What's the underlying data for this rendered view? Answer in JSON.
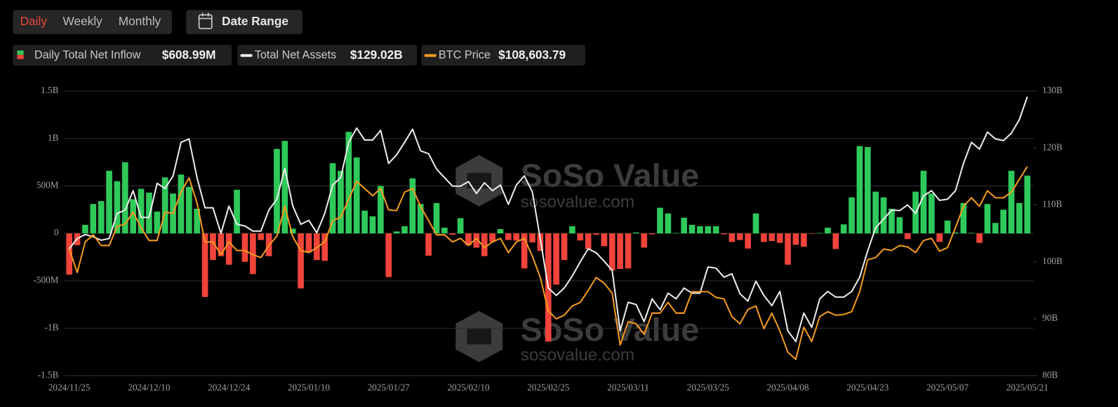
{
  "controls": {
    "periods": [
      "Daily",
      "Weekly",
      "Monthly"
    ],
    "date_range": "Date Range"
  },
  "watermark": {
    "brand": "SoSo Value",
    "url": "sosovalue.com"
  },
  "chart_data": {
    "type": "combo",
    "categories": [
      "2024/11/25",
      null,
      null,
      null,
      null,
      null,
      null,
      null,
      null,
      null,
      "2024/12/10",
      null,
      null,
      null,
      null,
      null,
      null,
      null,
      null,
      null,
      "2024/12/24",
      null,
      null,
      null,
      null,
      null,
      null,
      null,
      null,
      null,
      "2025/01/10",
      null,
      null,
      null,
      null,
      null,
      null,
      null,
      null,
      null,
      "2025/01/27",
      null,
      null,
      null,
      null,
      null,
      null,
      null,
      null,
      null,
      "2025/02/10",
      null,
      null,
      null,
      null,
      null,
      null,
      null,
      null,
      null,
      "2025/02/25",
      null,
      null,
      null,
      null,
      null,
      null,
      null,
      null,
      null,
      "2025/03/11",
      null,
      null,
      null,
      null,
      null,
      null,
      null,
      null,
      null,
      "2025/03/25",
      null,
      null,
      null,
      null,
      null,
      null,
      null,
      null,
      null,
      "2025/04/08",
      null,
      null,
      null,
      null,
      null,
      null,
      null,
      null,
      null,
      "2025/04/23",
      null,
      null,
      null,
      null,
      null,
      null,
      null,
      null,
      null,
      "2025/05/07",
      null,
      null,
      null,
      null,
      null,
      null,
      null,
      null,
      null,
      "2025/05/21"
    ],
    "series": [
      {
        "name": "Daily Total Net Inflow",
        "type": "bar",
        "latest_label": "$608.99M",
        "color": "#2fc95a",
        "negative_color": "#f0443a",
        "values": [
          -435,
          -125,
          90,
          310,
          340,
          660,
          550,
          750,
          360,
          470,
          430,
          230,
          590,
          420,
          620,
          490,
          260,
          -670,
          -280,
          -240,
          -330,
          460,
          -300,
          -430,
          -70,
          -240,
          890,
          975,
          50,
          -580,
          -200,
          -280,
          -290,
          740,
          660,
          1070,
          800,
          240,
          180,
          500,
          -460,
          20,
          75,
          580,
          310,
          -235,
          320,
          60,
          -15,
          160,
          -125,
          -150,
          -240,
          -90,
          45,
          -70,
          -75,
          -370,
          -95,
          -185,
          -1140,
          -540,
          -280,
          75,
          -75,
          -165,
          -15,
          -135,
          -390,
          -375,
          -370,
          10,
          -150,
          -10,
          270,
          210,
          5,
          165,
          90,
          75,
          75,
          75,
          -10,
          -90,
          -70,
          -160,
          210,
          -90,
          -80,
          -100,
          -330,
          -120,
          -140,
          -5,
          5,
          60,
          -165,
          95,
          380,
          920,
          910,
          440,
          380,
          260,
          170,
          -60,
          440,
          660,
          420,
          -90,
          135,
          10,
          320,
          5,
          -100,
          310,
          110,
          250,
          660,
          320,
          608.99
        ]
      },
      {
        "name": "Total Net Assets",
        "type": "line",
        "axis": "y2",
        "latest_label": "$129.02B",
        "color": "#ececec",
        "values": [
          102.3,
          104.1,
          104.8,
          104.4,
          103.8,
          104.1,
          108.5,
          109.1,
          112.5,
          107.8,
          107.8,
          113.8,
          112.9,
          115.1,
          121,
          121.6,
          114.8,
          109.5,
          109.5,
          105,
          109.8,
          106.6,
          106.3,
          105.4,
          105.4,
          109.1,
          111,
          116.4,
          109.8,
          106.6,
          107.3,
          105.1,
          108.5,
          113.5,
          114.8,
          121,
          123.5,
          121.4,
          121.4,
          123.1,
          117.3,
          118.8,
          121,
          123.3,
          119.5,
          119,
          116.3,
          114.8,
          113.3,
          113.3,
          114.1,
          112,
          113.9,
          112.5,
          113.5,
          110.1,
          113.5,
          115.1,
          112.3,
          104,
          95.4,
          94.1,
          95.4,
          97.5,
          100,
          102.3,
          101.6,
          100.1,
          98.5,
          87.9,
          92.9,
          92.5,
          89.5,
          93.5,
          91.6,
          94.5,
          93.5,
          95.4,
          94.5,
          94.5,
          99.1,
          98.9,
          97.3,
          97.9,
          94.4,
          93.1,
          96.6,
          94.1,
          92.3,
          94.8,
          87.9,
          86,
          91,
          88.5,
          93.5,
          94.8,
          93.8,
          93.8,
          94.8,
          97.3,
          101.9,
          106,
          107.5,
          109.1,
          109,
          110,
          108.5,
          111.6,
          112.5,
          110.8,
          111,
          112.5,
          117.3,
          121,
          119.8,
          122.8,
          121.6,
          121.3,
          122.6,
          125,
          129.02
        ]
      },
      {
        "name": "BTC Price",
        "type": "line",
        "axis": "y3",
        "latest_label": "$108,603.79",
        "color": "#f39a1e",
        "values": [
          94830,
          90910,
          96020,
          97200,
          95420,
          95420,
          98630,
          98990,
          101000,
          98390,
          96250,
          96250,
          101000,
          100770,
          104330,
          106700,
          102550,
          96020,
          96020,
          93880,
          96020,
          94590,
          94590,
          93880,
          93400,
          95420,
          96970,
          101950,
          96850,
          94590,
          94240,
          95070,
          96020,
          99580,
          100170,
          103140,
          106110,
          104920,
          103730,
          104920,
          101360,
          101240,
          104330,
          104920,
          101950,
          99580,
          97200,
          97200,
          96020,
          96610,
          95420,
          96610,
          95070,
          96020,
          96610,
          94240,
          96020,
          96610,
          93640,
          90080,
          84500,
          83190,
          83780,
          85330,
          85920,
          87940,
          90080,
          89130,
          87470,
          78800,
          82720,
          82360,
          80580,
          84140,
          84140,
          85920,
          84140,
          84140,
          87710,
          87710,
          87710,
          86750,
          86520,
          83550,
          82360,
          84740,
          85330,
          81530,
          84140,
          81170,
          77610,
          76420,
          81770,
          79390,
          83550,
          84380,
          83780,
          83900,
          84380,
          87710,
          93050,
          93400,
          94830,
          94590,
          95420,
          95180,
          94240,
          96250,
          96610,
          94470,
          95070,
          98390,
          101950,
          103380,
          101950,
          104570,
          103380,
          103380,
          104330,
          106470,
          108603.79
        ]
      }
    ],
    "ylim": [
      -1500,
      1500
    ],
    "yticks": [
      {
        "value": 1500,
        "label": "1.5B"
      },
      {
        "value": 1000,
        "label": "1B"
      },
      {
        "value": 500,
        "label": "500M"
      },
      0,
      {
        "value": -500,
        "label": "-500M"
      },
      {
        "value": -1000,
        "label": "-1B"
      },
      {
        "value": -1500,
        "label": "-1.5B"
      }
    ],
    "y2lim": [
      80,
      130
    ],
    "y2ticks": [
      {
        "value": 130,
        "label": "130B"
      },
      {
        "value": 120,
        "label": "120B"
      },
      {
        "value": 110,
        "label": "110B"
      },
      {
        "value": 100,
        "label": "100B"
      },
      {
        "value": 90,
        "label": "90B"
      },
      {
        "value": 80,
        "label": "80B"
      }
    ],
    "y3lim": [
      73691,
      121191
    ],
    "grid": true
  }
}
